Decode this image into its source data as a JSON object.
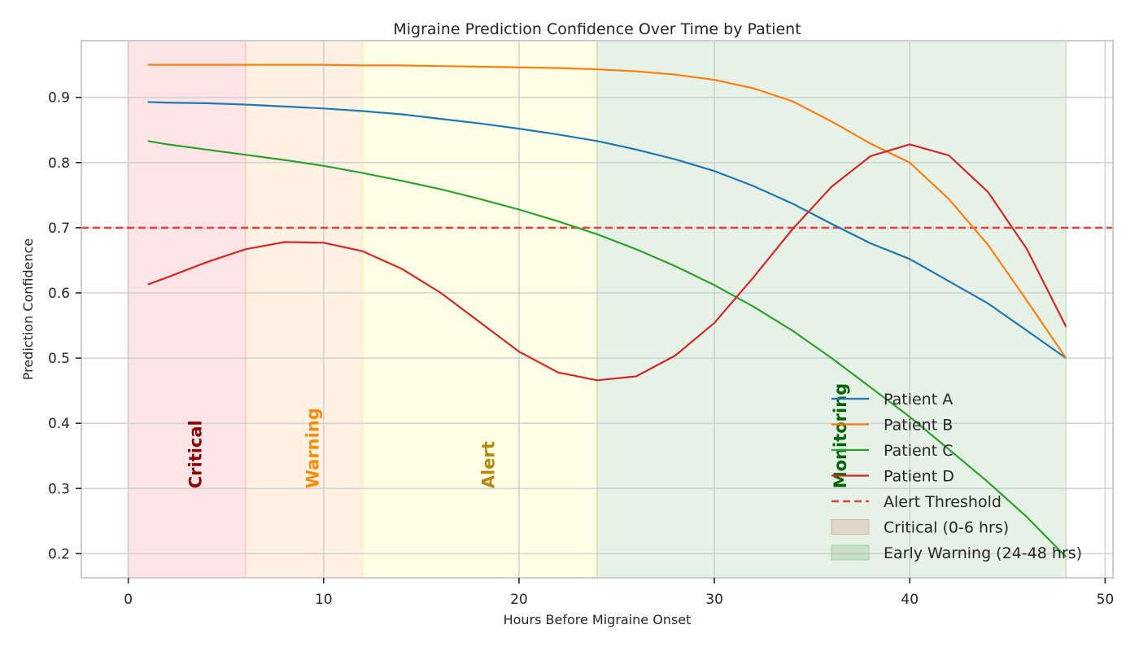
{
  "chart_data": {
    "type": "line",
    "title": "Migraine Prediction Confidence Over Time by Patient",
    "xlabel": "Hours Before Migraine Onset",
    "ylabel": "Prediction Confidence",
    "xlim": [
      -2.4,
      50.4
    ],
    "ylim": [
      0.163,
      0.987
    ],
    "xticks": [
      0,
      10,
      20,
      30,
      40,
      50
    ],
    "yticks": [
      0.2,
      0.3,
      0.4,
      0.5,
      0.6,
      0.7,
      0.8,
      0.9
    ],
    "grid": true,
    "legend_position": "lower-right",
    "x": [
      1,
      2,
      4,
      6,
      8,
      10,
      12,
      14,
      16,
      18,
      20,
      22,
      24,
      26,
      28,
      30,
      32,
      34,
      36,
      38,
      40,
      42,
      44,
      46,
      48
    ],
    "series": [
      {
        "name": "Patient A",
        "color": "#1f77b4",
        "values": [
          0.893,
          0.892,
          0.891,
          0.889,
          0.886,
          0.883,
          0.879,
          0.874,
          0.867,
          0.86,
          0.852,
          0.843,
          0.833,
          0.82,
          0.805,
          0.787,
          0.764,
          0.737,
          0.706,
          0.676,
          0.652,
          0.618,
          0.584,
          0.542,
          0.5
        ]
      },
      {
        "name": "Patient B",
        "color": "#ff7f0e",
        "values": [
          0.95,
          0.95,
          0.95,
          0.95,
          0.95,
          0.95,
          0.949,
          0.949,
          0.948,
          0.947,
          0.946,
          0.945,
          0.943,
          0.94,
          0.935,
          0.927,
          0.914,
          0.894,
          0.863,
          0.829,
          0.8,
          0.744,
          0.674,
          0.588,
          0.5
        ]
      },
      {
        "name": "Patient C",
        "color": "#2ca02c",
        "values": [
          0.833,
          0.828,
          0.82,
          0.812,
          0.804,
          0.795,
          0.784,
          0.772,
          0.759,
          0.744,
          0.728,
          0.71,
          0.69,
          0.667,
          0.641,
          0.612,
          0.579,
          0.542,
          0.5,
          0.455,
          0.41,
          0.36,
          0.31,
          0.256,
          0.195
        ]
      },
      {
        "name": "Patient D",
        "color": "#d62728",
        "values": [
          0.613,
          0.624,
          0.647,
          0.667,
          0.678,
          0.677,
          0.664,
          0.637,
          0.6,
          0.555,
          0.51,
          0.478,
          0.466,
          0.472,
          0.504,
          0.554,
          0.624,
          0.698,
          0.763,
          0.81,
          0.828,
          0.811,
          0.755,
          0.667,
          0.548
        ]
      }
    ],
    "threshold": {
      "name": "Alert Threshold",
      "value": 0.7,
      "color": "#e8413e"
    },
    "zones": [
      {
        "label": "Critical",
        "from": 0,
        "to": 6,
        "color": "#ff9999",
        "label_color": "#8b0000",
        "label_x": 3.4
      },
      {
        "label": "Warning",
        "from": 6,
        "to": 12,
        "color": "#ffcc99",
        "label_color": "#ff8c00",
        "label_x": 9.4
      },
      {
        "label": "Alert",
        "from": 12,
        "to": 24,
        "color": "#ffff99",
        "label_color": "#b8860b",
        "label_x": 18.4
      },
      {
        "label": "Monitoring",
        "from": 24,
        "to": 48,
        "color": "#99cc99",
        "label_color": "#006400",
        "label_x": 36.4
      }
    ],
    "legend_patches": [
      {
        "name": "Critical (0-6 hrs)",
        "color": "#cc9980"
      },
      {
        "name": "Early Warning (24-48 hrs)",
        "color": "#80bb80"
      }
    ]
  }
}
